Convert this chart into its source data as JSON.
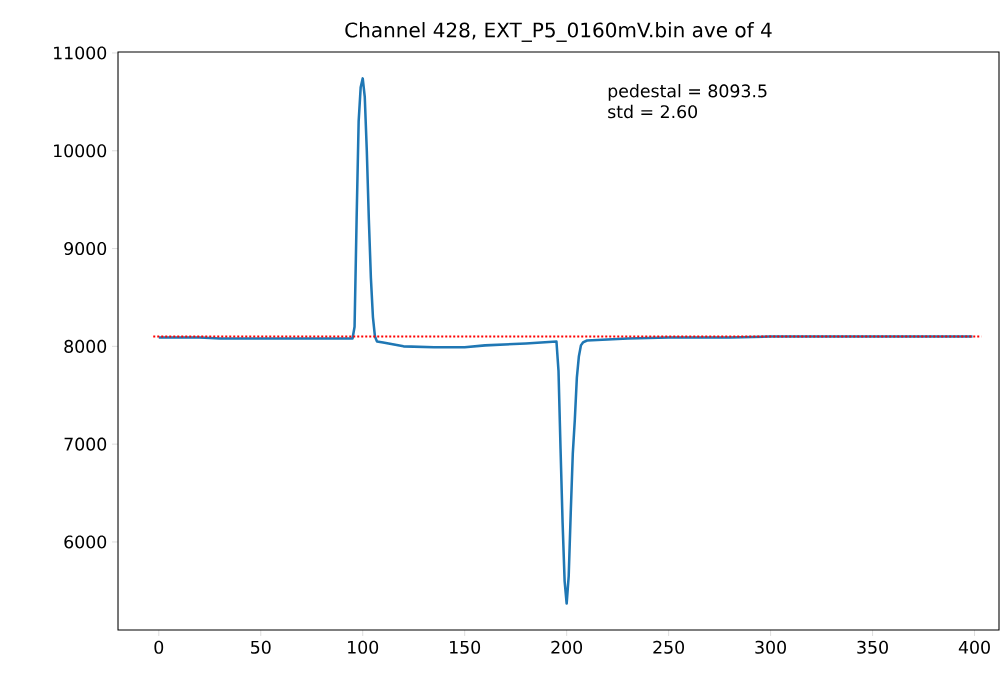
{
  "chart_data": {
    "type": "line",
    "title": "Channel 428, EXT_P5_0160mV.bin ave of 4",
    "annotations": [
      "pedestal = 8093.5",
      "std = 2.60"
    ],
    "xlim": [
      -20,
      412
    ],
    "ylim": [
      5100,
      11010
    ],
    "xticks": [
      0,
      50,
      100,
      150,
      200,
      250,
      300,
      350,
      400
    ],
    "yticks": [
      6000,
      7000,
      8000,
      9000,
      10000,
      11000
    ],
    "marker": "none",
    "line_style": "solid",
    "ref_lines": [
      {
        "axis": "y",
        "value": 8100,
        "color": "#ff0000",
        "line_style": "dotted"
      }
    ],
    "series": [
      {
        "color": "#1f77b4",
        "x": [
          0,
          10,
          20,
          30,
          40,
          50,
          60,
          70,
          80,
          90,
          95,
          96,
          97,
          98,
          99,
          100,
          101,
          102,
          103,
          104,
          105,
          106,
          107,
          110,
          120,
          135,
          150,
          160,
          180,
          195,
          196,
          197,
          198,
          199,
          200,
          201,
          202,
          203,
          204,
          205,
          206,
          207,
          208,
          210,
          230,
          250,
          280,
          300,
          330,
          360,
          380,
          399
        ],
        "values": [
          8090,
          8090,
          8090,
          8080,
          8080,
          8080,
          8080,
          8080,
          8080,
          8080,
          8080,
          8200,
          9300,
          10300,
          10650,
          10740,
          10550,
          10000,
          9300,
          8700,
          8300,
          8100,
          8050,
          8040,
          8000,
          7990,
          7990,
          8010,
          8030,
          8050,
          7750,
          6950,
          6200,
          5600,
          5370,
          5650,
          6300,
          6900,
          7250,
          7680,
          7900,
          8010,
          8040,
          8060,
          8080,
          8090,
          8090,
          8100,
          8100,
          8100,
          8100,
          8100
        ]
      }
    ]
  }
}
